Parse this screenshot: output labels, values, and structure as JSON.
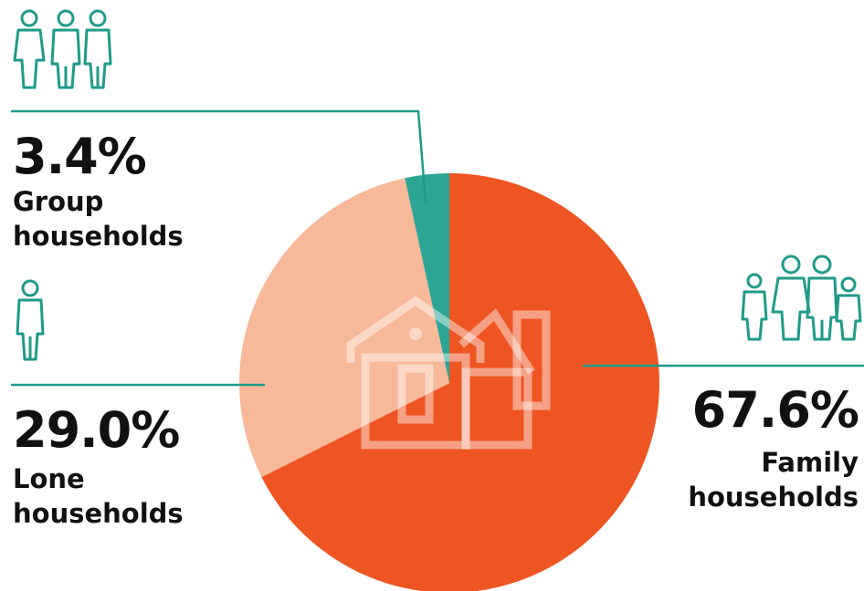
{
  "chart_data": {
    "type": "pie",
    "slices": [
      {
        "label_line1": "Family",
        "label_line2": "households",
        "value": 67.6,
        "display": "67.6%",
        "color": "#ee5522"
      },
      {
        "label_line1": "Lone",
        "label_line2": "households",
        "value": 29.0,
        "display": "29.0%",
        "color": "#f8b89a"
      },
      {
        "label_line1": "Group",
        "label_line2": "households",
        "value": 3.4,
        "display": "3.4%",
        "color": "#2aa596"
      }
    ],
    "start": "12 o'clock, clockwise",
    "accent_color": "#1f9a8a"
  },
  "icons": {
    "group": "people-group-icon",
    "lone": "person-icon",
    "family": "family-icon",
    "center": "house-icon"
  }
}
